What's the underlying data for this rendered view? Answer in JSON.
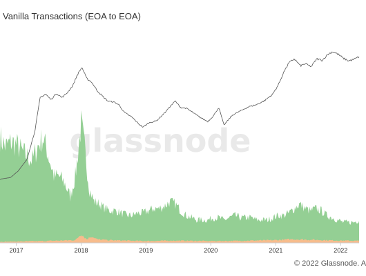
{
  "chart_data": {
    "type": "area",
    "title": "Vanilla Transactions (EOA to EOA)",
    "watermark": "glassnode",
    "copyright": "© 2022 Glassnode. A",
    "x_ticks": [
      "2017",
      "2018",
      "2019",
      "2020",
      "2021",
      "2022"
    ],
    "x_range": [
      "2016-10-01",
      "2022-04-15"
    ],
    "ylabel": "",
    "grid": false,
    "legend": "none",
    "colors": {
      "price_line": "#555555",
      "area_total": "#94cf94",
      "area_sub": "#f7bc8d",
      "axis": "#cccccc",
      "watermark": "#e9e9e9"
    },
    "series": [
      {
        "role": "price-line",
        "axis": "right (unlabeled)",
        "points": [
          [
            "2016-10-01",
            5.2
          ],
          [
            "2016-12-01",
            5.5
          ],
          [
            "2017-01-15",
            6.5
          ],
          [
            "2017-03-01",
            8.0
          ],
          [
            "2017-04-15",
            12.0
          ],
          [
            "2017-05-15",
            16.8
          ],
          [
            "2017-06-15",
            17.3
          ],
          [
            "2017-07-15",
            16.5
          ],
          [
            "2017-08-15",
            17.4
          ],
          [
            "2017-09-15",
            16.8
          ],
          [
            "2017-10-15",
            17.5
          ],
          [
            "2017-11-15",
            18.5
          ],
          [
            "2017-12-10",
            20.0
          ],
          [
            "2018-01-05",
            21.1
          ],
          [
            "2018-02-01",
            19.5
          ],
          [
            "2018-03-01",
            19.0
          ],
          [
            "2018-04-01",
            17.8
          ],
          [
            "2018-05-01",
            17.0
          ],
          [
            "2018-06-01",
            16.3
          ],
          [
            "2018-07-01",
            16.2
          ],
          [
            "2018-08-01",
            15.8
          ],
          [
            "2018-09-01",
            14.7
          ],
          [
            "2018-10-15",
            14.0
          ],
          [
            "2018-11-20",
            13.1
          ],
          [
            "2018-12-15",
            12.6
          ],
          [
            "2019-01-15",
            13.2
          ],
          [
            "2019-03-01",
            13.5
          ],
          [
            "2019-04-15",
            14.6
          ],
          [
            "2019-05-15",
            15.5
          ],
          [
            "2019-06-15",
            16.3
          ],
          [
            "2019-07-15",
            15.4
          ],
          [
            "2019-08-15",
            15.3
          ],
          [
            "2019-09-15",
            14.8
          ],
          [
            "2019-11-01",
            14.0
          ],
          [
            "2019-12-15",
            13.4
          ],
          [
            "2020-01-15",
            14.2
          ],
          [
            "2020-02-15",
            15.4
          ],
          [
            "2020-03-15",
            12.9
          ],
          [
            "2020-05-01",
            14.3
          ],
          [
            "2020-06-15",
            14.9
          ],
          [
            "2020-08-01",
            15.5
          ],
          [
            "2020-09-15",
            15.8
          ],
          [
            "2020-11-01",
            16.4
          ],
          [
            "2020-12-15",
            17.3
          ],
          [
            "2021-01-15",
            18.6
          ],
          [
            "2021-02-15",
            20.4
          ],
          [
            "2021-03-15",
            21.7
          ],
          [
            "2021-04-15",
            22.3
          ],
          [
            "2021-05-20",
            21.3
          ],
          [
            "2021-06-15",
            21.6
          ],
          [
            "2021-07-20",
            21.2
          ],
          [
            "2021-08-20",
            22.3
          ],
          [
            "2021-09-20",
            22.1
          ],
          [
            "2021-10-20",
            22.9
          ],
          [
            "2021-11-15",
            23.3
          ],
          [
            "2021-12-15",
            23.0
          ],
          [
            "2022-01-15",
            22.4
          ],
          [
            "2022-02-15",
            22.0
          ],
          [
            "2022-03-15",
            22.2
          ],
          [
            "2022-04-15",
            22.6
          ]
        ]
      },
      {
        "role": "area-total",
        "axis": "left (unlabeled)",
        "points": [
          [
            "2016-10-01",
            0.46
          ],
          [
            "2016-11-01",
            0.42
          ],
          [
            "2016-12-01",
            0.44
          ],
          [
            "2017-01-01",
            0.43
          ],
          [
            "2017-02-01",
            0.4
          ],
          [
            "2017-03-01",
            0.38
          ],
          [
            "2017-04-01",
            0.36
          ],
          [
            "2017-05-01",
            0.42
          ],
          [
            "2017-06-01",
            0.46
          ],
          [
            "2017-07-01",
            0.38
          ],
          [
            "2017-08-01",
            0.29
          ],
          [
            "2017-09-01",
            0.29
          ],
          [
            "2017-10-01",
            0.26
          ],
          [
            "2017-11-01",
            0.2
          ],
          [
            "2017-12-01",
            0.3
          ],
          [
            "2018-01-01",
            0.52
          ],
          [
            "2018-01-20",
            0.42
          ],
          [
            "2018-02-15",
            0.24
          ],
          [
            "2018-03-15",
            0.18
          ],
          [
            "2018-04-15",
            0.17
          ],
          [
            "2018-05-15",
            0.15
          ],
          [
            "2018-06-15",
            0.14
          ],
          [
            "2018-07-15",
            0.14
          ],
          [
            "2018-08-15",
            0.13
          ],
          [
            "2018-09-15",
            0.12
          ],
          [
            "2018-10-15",
            0.12
          ],
          [
            "2018-11-15",
            0.13
          ],
          [
            "2018-12-15",
            0.13
          ],
          [
            "2019-01-15",
            0.14
          ],
          [
            "2019-02-15",
            0.15
          ],
          [
            "2019-03-15",
            0.15
          ],
          [
            "2019-04-15",
            0.16
          ],
          [
            "2019-05-15",
            0.18
          ],
          [
            "2019-06-15",
            0.17
          ],
          [
            "2019-07-15",
            0.14
          ],
          [
            "2019-08-15",
            0.12
          ],
          [
            "2019-09-15",
            0.11
          ],
          [
            "2019-10-15",
            0.1
          ],
          [
            "2019-11-15",
            0.1
          ],
          [
            "2019-12-15",
            0.1
          ],
          [
            "2020-01-15",
            0.11
          ],
          [
            "2020-02-15",
            0.11
          ],
          [
            "2020-03-15",
            0.1
          ],
          [
            "2020-04-15",
            0.11
          ],
          [
            "2020-05-15",
            0.12
          ],
          [
            "2020-06-15",
            0.11
          ],
          [
            "2020-07-15",
            0.11
          ],
          [
            "2020-08-15",
            0.11
          ],
          [
            "2020-09-15",
            0.1
          ],
          [
            "2020-10-15",
            0.1
          ],
          [
            "2020-11-15",
            0.1
          ],
          [
            "2020-12-15",
            0.11
          ],
          [
            "2021-01-15",
            0.12
          ],
          [
            "2021-02-15",
            0.12
          ],
          [
            "2021-03-15",
            0.13
          ],
          [
            "2021-04-15",
            0.15
          ],
          [
            "2021-05-15",
            0.17
          ],
          [
            "2021-06-15",
            0.15
          ],
          [
            "2021-07-15",
            0.14
          ],
          [
            "2021-08-15",
            0.15
          ],
          [
            "2021-09-15",
            0.14
          ],
          [
            "2021-10-15",
            0.12
          ],
          [
            "2021-11-15",
            0.11
          ],
          [
            "2021-12-15",
            0.1
          ],
          [
            "2022-01-15",
            0.09
          ],
          [
            "2022-02-15",
            0.09
          ],
          [
            "2022-03-15",
            0.09
          ],
          [
            "2022-04-15",
            0.1
          ]
        ]
      },
      {
        "role": "area-sub",
        "axis": "left (unlabeled)",
        "points": [
          [
            "2016-10-01",
            0.005
          ],
          [
            "2017-06-01",
            0.008
          ],
          [
            "2017-12-01",
            0.012
          ],
          [
            "2018-01-01",
            0.04
          ],
          [
            "2018-02-01",
            0.015
          ],
          [
            "2018-03-01",
            0.03
          ],
          [
            "2018-04-01",
            0.015
          ],
          [
            "2018-06-01",
            0.012
          ],
          [
            "2018-09-01",
            0.01
          ],
          [
            "2019-01-01",
            0.008
          ],
          [
            "2019-06-01",
            0.01
          ],
          [
            "2020-01-01",
            0.008
          ],
          [
            "2020-06-01",
            0.009
          ],
          [
            "2021-01-01",
            0.012
          ],
          [
            "2021-04-01",
            0.016
          ],
          [
            "2021-07-01",
            0.014
          ],
          [
            "2021-10-01",
            0.012
          ],
          [
            "2022-01-01",
            0.01
          ],
          [
            "2022-04-15",
            0.009
          ]
        ]
      }
    ]
  }
}
